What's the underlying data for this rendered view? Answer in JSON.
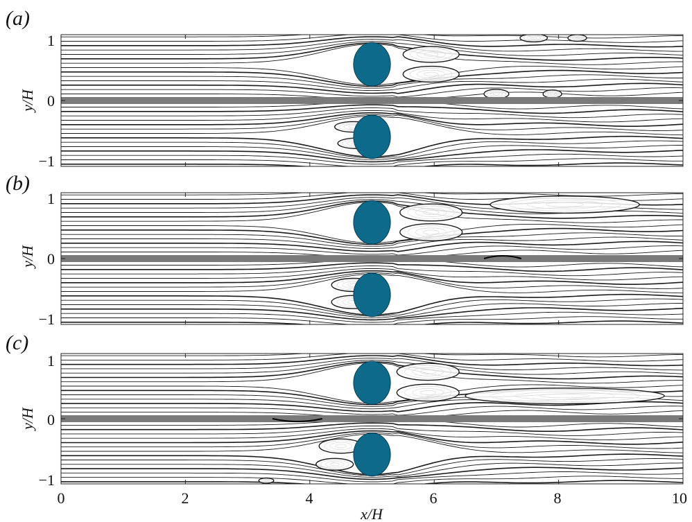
{
  "figure": {
    "x_label": "x/H",
    "y_label": "y/H",
    "x_ticks": [
      "0",
      "2",
      "4",
      "6",
      "8",
      "10"
    ],
    "y_ticks": [
      "1",
      "0",
      "−1"
    ],
    "x_range": [
      0,
      10
    ],
    "y_range": [
      -1,
      1
    ],
    "cylinder_color": "#0e6a8a",
    "wall_color": "#7a7a7a",
    "streamline_color": "#1a1a1a"
  },
  "panels": [
    {
      "label": "(a)",
      "cylinders": [
        {
          "x": 5.0,
          "y": 0.55,
          "r": 0.33
        },
        {
          "x": 5.0,
          "y": -0.55,
          "r": 0.33
        }
      ],
      "wall_dip_range": null,
      "eddies": [
        {
          "x": 5.95,
          "y": 0.7,
          "rx": 0.45,
          "ry": 0.12
        },
        {
          "x": 5.95,
          "y": 0.4,
          "rx": 0.45,
          "ry": 0.12
        },
        {
          "x": 4.7,
          "y": -0.4,
          "rx": 0.3,
          "ry": 0.08
        },
        {
          "x": 4.75,
          "y": -0.65,
          "rx": 0.3,
          "ry": 0.08
        },
        {
          "x": 7.0,
          "y": 0.1,
          "rx": 0.2,
          "ry": 0.07
        },
        {
          "x": 7.9,
          "y": 0.1,
          "rx": 0.15,
          "ry": 0.06
        },
        {
          "x": 7.6,
          "y": 0.95,
          "rx": 0.22,
          "ry": 0.06
        },
        {
          "x": 8.3,
          "y": 0.95,
          "rx": 0.15,
          "ry": 0.05
        }
      ]
    },
    {
      "label": "(b)",
      "cylinders": [
        {
          "x": 5.0,
          "y": 0.55,
          "r": 0.33
        },
        {
          "x": 5.0,
          "y": -0.55,
          "r": 0.33
        }
      ],
      "wall_dip_range": [
        6.8,
        7.4
      ],
      "eddies": [
        {
          "x": 5.95,
          "y": 0.7,
          "rx": 0.5,
          "ry": 0.13
        },
        {
          "x": 5.95,
          "y": 0.4,
          "rx": 0.5,
          "ry": 0.13
        },
        {
          "x": 8.1,
          "y": 0.82,
          "rx": 1.2,
          "ry": 0.13
        },
        {
          "x": 4.7,
          "y": -0.4,
          "rx": 0.35,
          "ry": 0.1
        },
        {
          "x": 4.7,
          "y": -0.66,
          "rx": 0.35,
          "ry": 0.1
        }
      ]
    },
    {
      "label": "(c)",
      "cylinders": [
        {
          "x": 5.0,
          "y": 0.55,
          "r": 0.33
        },
        {
          "x": 5.0,
          "y": -0.55,
          "r": 0.33
        }
      ],
      "wall_dip_range": [
        3.4,
        4.2
      ],
      "eddies": [
        {
          "x": 5.9,
          "y": 0.72,
          "rx": 0.5,
          "ry": 0.13
        },
        {
          "x": 5.9,
          "y": 0.4,
          "rx": 0.5,
          "ry": 0.13
        },
        {
          "x": 8.1,
          "y": 0.35,
          "rx": 1.6,
          "ry": 0.12
        },
        {
          "x": 4.5,
          "y": -0.42,
          "rx": 0.35,
          "ry": 0.11
        },
        {
          "x": 4.4,
          "y": -0.7,
          "rx": 0.3,
          "ry": 0.09
        },
        {
          "x": 3.3,
          "y": -0.95,
          "rx": 0.12,
          "ry": 0.04
        }
      ]
    }
  ]
}
